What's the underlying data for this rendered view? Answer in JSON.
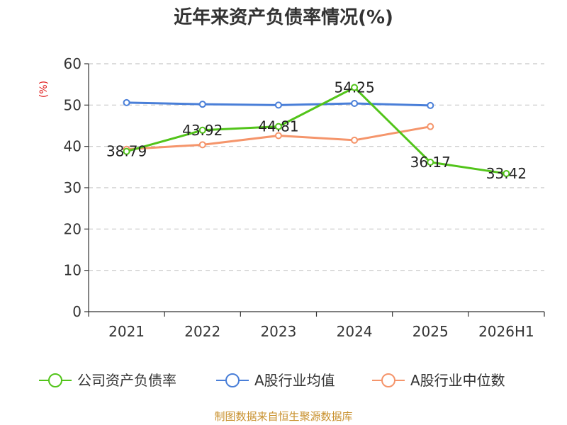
{
  "chart_data": {
    "type": "line",
    "title": "近年来资产负债率情况(%)",
    "ylabel": "(%)",
    "xlabel": "",
    "categories": [
      "2021",
      "2022",
      "2023",
      "2024",
      "2025",
      "2026H1"
    ],
    "yticks": [
      "0",
      "10",
      "20",
      "30",
      "40",
      "50",
      "60"
    ],
    "ylim": [
      0,
      60
    ],
    "grid": true,
    "legend_position": "bottom",
    "series": [
      {
        "name": "公司资产负债率",
        "color": "#52c41a",
        "values": [
          38.79,
          43.92,
          44.81,
          54.25,
          36.17,
          33.42
        ],
        "labels": [
          "38.79",
          "43.92",
          "44.81",
          "54.25",
          "36.17",
          "33.42"
        ]
      },
      {
        "name": "A股行业均值",
        "color": "#4a7fd8",
        "values": [
          50.6,
          50.2,
          50.0,
          50.4,
          49.9,
          null
        ]
      },
      {
        "name": "A股行业中位数",
        "color": "#f5956b",
        "values": [
          39.3,
          40.4,
          42.6,
          41.5,
          44.8,
          null
        ]
      }
    ]
  },
  "source": "制图数据来自恒生聚源数据库"
}
